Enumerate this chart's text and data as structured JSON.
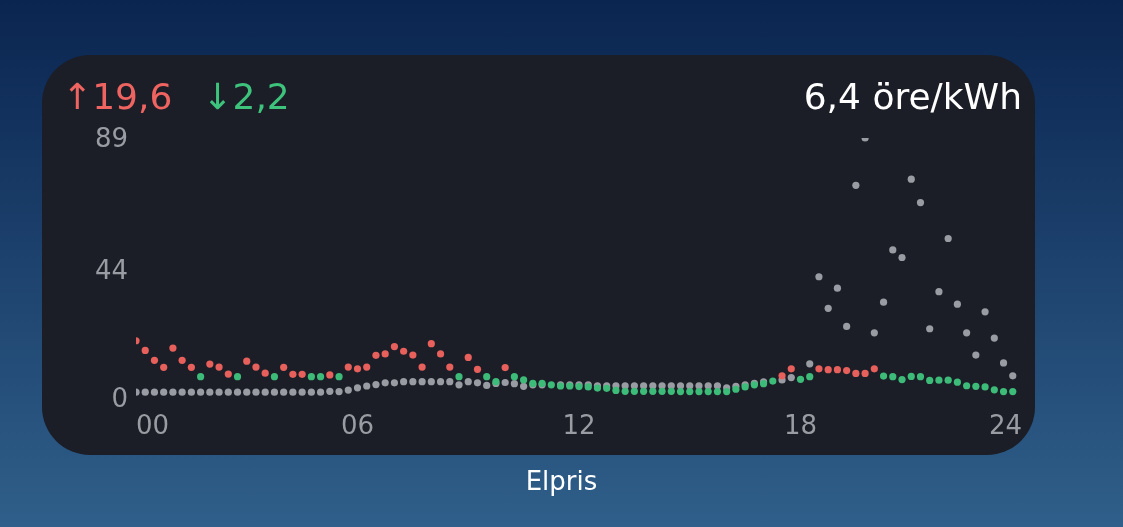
{
  "chart_data": {
    "type": "scatter",
    "x": [
      0,
      0.25,
      0.5,
      0.75,
      1,
      1.25,
      1.5,
      1.75,
      2,
      2.25,
      2.5,
      2.75,
      3,
      3.25,
      3.5,
      3.75,
      4,
      4.25,
      4.5,
      4.75,
      5,
      5.25,
      5.5,
      5.75,
      6,
      6.25,
      6.5,
      6.75,
      7,
      7.25,
      7.5,
      7.75,
      8,
      8.25,
      8.5,
      8.75,
      9,
      9.25,
      9.5,
      9.75,
      10,
      10.25,
      10.5,
      10.75,
      11,
      11.25,
      11.5,
      11.75,
      12,
      12.25,
      12.5,
      12.75,
      13,
      13.25,
      13.5,
      13.75,
      14,
      14.25,
      14.5,
      14.75,
      15,
      15.25,
      15.5,
      15.75,
      16,
      16.25,
      16.5,
      16.75,
      17,
      17.25,
      17.5,
      17.75,
      18,
      18.25,
      18.5,
      18.75,
      19,
      19.25,
      19.5,
      19.75,
      20,
      20.25,
      20.5,
      20.75,
      21,
      21.25,
      21.5,
      21.75,
      22,
      22.25,
      22.5,
      22.75,
      23,
      23.25,
      23.5,
      23.75
    ],
    "series": [
      {
        "color": "#9a9ca3",
        "values": [
          2.0,
          2.0,
          2.0,
          2.0,
          2.0,
          2.0,
          2.0,
          2.0,
          2.0,
          2.0,
          2.0,
          2.0,
          2.0,
          2.0,
          2.0,
          2.0,
          2.0,
          2.0,
          2.0,
          2.0,
          2.0,
          2.3,
          2.2,
          2.7,
          3.5,
          4.1,
          4.6,
          5.2,
          5.2,
          5.6,
          5.6,
          5.6,
          5.6,
          5.6,
          5.6,
          4.5,
          5.6,
          5.2,
          4.3,
          5.0,
          5.3,
          4.9,
          4.0,
          4.5,
          4.5,
          null,
          4.5,
          4.5,
          4.5,
          4.5,
          4.2,
          4.2,
          4.2,
          4.2,
          4.2,
          4.2,
          4.2,
          4.2,
          4.2,
          4.2,
          4.2,
          4.2,
          4.2,
          4.2,
          3.5,
          4.0,
          4.5,
          5.0,
          5.5,
          null,
          6.2,
          7.0,
          null,
          11.7,
          41.5,
          30.7,
          37.6,
          24.5,
          72.8,
          89,
          22.3,
          32.8,
          50.7,
          48.1,
          74.9,
          66.9,
          23.7,
          36.4,
          54.6,
          32.1,
          22.3,
          14.7,
          29.5,
          20.5,
          12.0,
          7.6
        ]
      },
      {
        "values": [
          19.6,
          16.3,
          12.9,
          10.5,
          17.1,
          12.9,
          10.5,
          7.3,
          11.6,
          10.6,
          8.2,
          7.3,
          12.6,
          10.6,
          8.5,
          7.3,
          10.5,
          8.1,
          8.1,
          7.3,
          7.3,
          7.9,
          7.3,
          10.6,
          10.0,
          10.6,
          14.6,
          15.1,
          17.6,
          16.0,
          14.7,
          10.6,
          18.6,
          15.1,
          10.6,
          7.3,
          13.9,
          9.8,
          7.3,
          5.6,
          10.4,
          7.3,
          6.2,
          5.0,
          5.0,
          4.5,
          4.1,
          4.1,
          3.9,
          3.8,
          3.4,
          3.3,
          2.6,
          2.3,
          2.3,
          2.3,
          2.3,
          2.3,
          2.3,
          2.2,
          2.2,
          2.2,
          2.2,
          2.2,
          2.2,
          3.0,
          3.8,
          4.5,
          4.9,
          5.8,
          7.6,
          10.0,
          6.4,
          7.3,
          10.0,
          9.7,
          9.7,
          9.4,
          8.4,
          8.4,
          10.0,
          7.5,
          7.3,
          6.3,
          7.4,
          7.3,
          6.0,
          6.1,
          6.1,
          5.4,
          4.2,
          4.0,
          3.8,
          2.8,
          2.2,
          2.2
        ],
        "colors": [
          "#e8605c",
          "#e8605c",
          "#e8605c",
          "#e8605c",
          "#e8605c",
          "#e8605c",
          "#e8605c",
          "#3dbb78",
          "#e8605c",
          "#e8605c",
          "#e8605c",
          "#3dbb78",
          "#e8605c",
          "#e8605c",
          "#e8605c",
          "#3dbb78",
          "#e8605c",
          "#e8605c",
          "#e8605c",
          "#3dbb78",
          "#3dbb78",
          "#e8605c",
          "#3dbb78",
          "#e8605c",
          "#e8605c",
          "#e8605c",
          "#e8605c",
          "#e8605c",
          "#e8605c",
          "#e8605c",
          "#e8605c",
          "#e8605c",
          "#e8605c",
          "#e8605c",
          "#e8605c",
          "#3dbb78",
          "#e8605c",
          "#e8605c",
          "#3dbb78",
          "#3dbb78",
          "#e8605c",
          "#3dbb78",
          "#3dbb78",
          "#3dbb78",
          "#3dbb78",
          "#3dbb78",
          "#3dbb78",
          "#3dbb78",
          "#3dbb78",
          "#3dbb78",
          "#3dbb78",
          "#3dbb78",
          "#3dbb78",
          "#3dbb78",
          "#3dbb78",
          "#3dbb78",
          "#3dbb78",
          "#3dbb78",
          "#3dbb78",
          "#3dbb78",
          "#3dbb78",
          "#3dbb78",
          "#3dbb78",
          "#3dbb78",
          "#3dbb78",
          "#3dbb78",
          "#3dbb78",
          "#3dbb78",
          "#3dbb78",
          "#3dbb78",
          "#e8605c",
          "#e8605c",
          "#3dbb78",
          "#3dbb78",
          "#e8605c",
          "#e8605c",
          "#e8605c",
          "#e8605c",
          "#e8605c",
          "#e8605c",
          "#e8605c",
          "#3dbb78",
          "#3dbb78",
          "#3dbb78",
          "#3dbb78",
          "#3dbb78",
          "#3dbb78",
          "#3dbb78",
          "#3dbb78",
          "#3dbb78",
          "#3dbb78",
          "#3dbb78",
          "#3dbb78",
          "#3dbb78",
          "#3dbb78",
          "#3dbb78"
        ]
      }
    ],
    "xlim": [
      0,
      24
    ],
    "xticks": [
      {
        "value": 0,
        "label": "00"
      },
      {
        "value": 6,
        "label": "06"
      },
      {
        "value": 12,
        "label": "12"
      },
      {
        "value": 18,
        "label": "18"
      },
      {
        "value": 24,
        "label": "24"
      }
    ],
    "ylim": [
      0,
      89
    ],
    "yticks": [
      0,
      44,
      89
    ],
    "grid": false,
    "legend": false,
    "marker": "circle",
    "annotations": [
      "↑19,6",
      "↓2,2",
      "6,4 öre/kWh",
      "Elpris"
    ]
  }
}
